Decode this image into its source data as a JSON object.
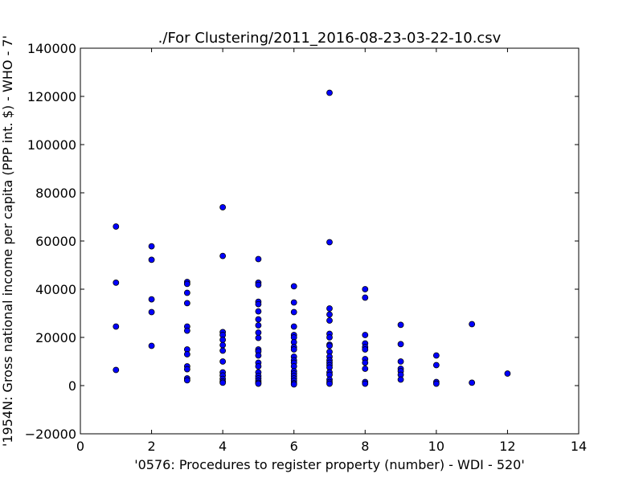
{
  "chart_data": {
    "type": "scatter",
    "title": "./For Clustering/2011_2016-08-23-03-22-10.csv",
    "xlabel": "'0576: Procedures to register property  (number) - WDI - 520'",
    "ylabel": "'1954N: Gross national income per capita (PPP int. $) - WHO - 7'",
    "xlim": [
      0,
      14
    ],
    "ylim": [
      -20000,
      140000
    ],
    "xticks": [
      0,
      2,
      4,
      6,
      8,
      10,
      12,
      14
    ],
    "yticks": [
      -20000,
      0,
      20000,
      40000,
      60000,
      80000,
      100000,
      120000,
      140000
    ],
    "grid": false,
    "marker_color": "#0000ff",
    "marker_edge": "#000000",
    "points": [
      [
        1,
        66000
      ],
      [
        1,
        42700
      ],
      [
        1,
        24500
      ],
      [
        1,
        6500
      ],
      [
        2,
        57800
      ],
      [
        2,
        52200
      ],
      [
        2,
        35800
      ],
      [
        2,
        30500
      ],
      [
        2,
        16500
      ],
      [
        3,
        43000
      ],
      [
        3,
        42200
      ],
      [
        3,
        38500
      ],
      [
        3,
        34200
      ],
      [
        3,
        24500
      ],
      [
        3,
        22800
      ],
      [
        3,
        15000
      ],
      [
        3,
        13000
      ],
      [
        3,
        8000
      ],
      [
        3,
        6800
      ],
      [
        3,
        3000
      ],
      [
        3,
        2200
      ],
      [
        4,
        74000
      ],
      [
        4,
        53800
      ],
      [
        4,
        22200
      ],
      [
        4,
        21000
      ],
      [
        4,
        19000
      ],
      [
        4,
        16800
      ],
      [
        4,
        14500
      ],
      [
        4,
        10000
      ],
      [
        4,
        5500
      ],
      [
        4,
        4200
      ],
      [
        4,
        2800
      ],
      [
        4,
        1800
      ],
      [
        4,
        1200
      ],
      [
        5,
        52500
      ],
      [
        5,
        42700
      ],
      [
        5,
        41800
      ],
      [
        5,
        34800
      ],
      [
        5,
        33800
      ],
      [
        5,
        30800
      ],
      [
        5,
        27500
      ],
      [
        5,
        25000
      ],
      [
        5,
        22000
      ],
      [
        5,
        19800
      ],
      [
        5,
        15000
      ],
      [
        5,
        14200
      ],
      [
        5,
        12500
      ],
      [
        5,
        9500
      ],
      [
        5,
        8000
      ],
      [
        5,
        5500
      ],
      [
        5,
        4000
      ],
      [
        5,
        3000
      ],
      [
        5,
        2000
      ],
      [
        5,
        1200
      ],
      [
        5,
        800
      ],
      [
        6,
        41200
      ],
      [
        6,
        34500
      ],
      [
        6,
        30500
      ],
      [
        6,
        24500
      ],
      [
        6,
        21000
      ],
      [
        6,
        20000
      ],
      [
        6,
        18000
      ],
      [
        6,
        16000
      ],
      [
        6,
        15000
      ],
      [
        6,
        12000
      ],
      [
        6,
        10500
      ],
      [
        6,
        9500
      ],
      [
        6,
        8000
      ],
      [
        6,
        6000
      ],
      [
        6,
        5000
      ],
      [
        6,
        4000
      ],
      [
        6,
        3000
      ],
      [
        6,
        2000
      ],
      [
        6,
        1000
      ],
      [
        6,
        500
      ],
      [
        7,
        121500
      ],
      [
        7,
        59500
      ],
      [
        7,
        32000
      ],
      [
        7,
        29500
      ],
      [
        7,
        27000
      ],
      [
        7,
        21500
      ],
      [
        7,
        20000
      ],
      [
        7,
        17000
      ],
      [
        7,
        16500
      ],
      [
        7,
        14000
      ],
      [
        7,
        12000
      ],
      [
        7,
        10500
      ],
      [
        7,
        9500
      ],
      [
        7,
        8500
      ],
      [
        7,
        7500
      ],
      [
        7,
        5500
      ],
      [
        7,
        4500
      ],
      [
        7,
        2500
      ],
      [
        7,
        1500
      ],
      [
        7,
        800
      ],
      [
        8,
        40000
      ],
      [
        8,
        36500
      ],
      [
        8,
        21000
      ],
      [
        8,
        17500
      ],
      [
        8,
        16000
      ],
      [
        8,
        15000
      ],
      [
        8,
        11000
      ],
      [
        8,
        9500
      ],
      [
        8,
        7000
      ],
      [
        8,
        1500
      ],
      [
        8,
        800
      ],
      [
        9,
        25200
      ],
      [
        9,
        17200
      ],
      [
        9,
        10000
      ],
      [
        9,
        7000
      ],
      [
        9,
        6000
      ],
      [
        9,
        4500
      ],
      [
        9,
        2500
      ],
      [
        10,
        12500
      ],
      [
        10,
        8500
      ],
      [
        10,
        1500
      ],
      [
        10,
        800
      ],
      [
        11,
        25500
      ],
      [
        11,
        1200
      ],
      [
        12,
        5000
      ]
    ]
  }
}
